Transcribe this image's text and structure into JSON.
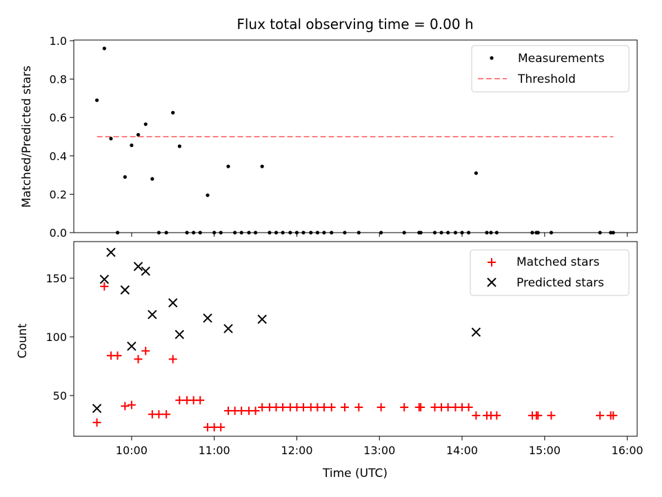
{
  "chart_data": [
    {
      "type": "scatter",
      "title": "Flux total observing time = 0.00 h",
      "xlabel": "",
      "ylabel": "Matched/Predicted stars",
      "ylim": [
        0.0,
        1.0
      ],
      "yticks": [
        0.0,
        0.2,
        0.4,
        0.6,
        0.8,
        1.0
      ],
      "ytick_labels": [
        "0.0",
        "0.2",
        "0.4",
        "0.6",
        "0.8",
        "1.0"
      ],
      "legend_position": "top-right",
      "series": [
        {
          "name": "Measurements",
          "marker": "dot",
          "color": "#000000",
          "x": [
            9.58,
            9.67,
            9.75,
            9.83,
            9.92,
            10.0,
            10.08,
            10.17,
            10.25,
            10.33,
            10.42,
            10.5,
            10.58,
            10.67,
            10.75,
            10.83,
            10.92,
            11.0,
            11.08,
            11.17,
            11.25,
            11.33,
            11.42,
            11.5,
            11.58,
            11.67,
            11.75,
            11.83,
            11.92,
            12.0,
            12.08,
            12.17,
            12.25,
            12.33,
            12.42,
            12.58,
            12.75,
            13.02,
            13.3,
            13.48,
            13.5,
            13.67,
            13.75,
            13.83,
            13.92,
            14.0,
            14.08,
            14.17,
            14.3,
            14.35,
            14.42,
            14.85,
            14.9,
            14.92,
            15.08,
            15.67,
            15.8,
            15.83
          ],
          "y": [
            0.69,
            0.96,
            0.49,
            0.0,
            0.29,
            0.455,
            0.51,
            0.565,
            0.28,
            0.0,
            0.0,
            0.625,
            0.45,
            0.0,
            0.0,
            0.0,
            0.195,
            0.0,
            0.0,
            0.345,
            0.0,
            0.0,
            0.0,
            0.0,
            0.345,
            0.0,
            0.0,
            0.0,
            0.0,
            0.0,
            0.0,
            0.0,
            0.0,
            0.0,
            0.0,
            0.0,
            0.0,
            0.0,
            0.0,
            0.0,
            0.0,
            0.0,
            0.0,
            0.0,
            0.0,
            0.0,
            0.0,
            0.31,
            0.0,
            0.0,
            0.0,
            0.0,
            0.0,
            0.0,
            0.0,
            0.0,
            0.0,
            0.0
          ]
        },
        {
          "name": "Threshold",
          "type": "line",
          "style": "dashed",
          "color": "#ff7f7f",
          "x": [
            9.58,
            15.83
          ],
          "y": [
            0.5,
            0.5
          ]
        }
      ]
    },
    {
      "type": "scatter",
      "title": "",
      "xlabel": "Time (UTC)",
      "ylabel": "Count",
      "ylim": [
        15,
        180
      ],
      "xlim": [
        9.3,
        16.12
      ],
      "yticks": [
        50,
        100,
        150
      ],
      "ytick_labels": [
        "50",
        "100",
        "150"
      ],
      "xticks": [
        10,
        11,
        12,
        13,
        14,
        15,
        16
      ],
      "xtick_labels": [
        "10:00",
        "11:00",
        "12:00",
        "13:00",
        "14:00",
        "15:00",
        "16:00"
      ],
      "legend_position": "top-right",
      "series": [
        {
          "name": "Matched stars",
          "marker": "plus",
          "color": "#ff0000",
          "x": [
            9.58,
            9.67,
            9.75,
            9.83,
            9.92,
            10.0,
            10.08,
            10.17,
            10.25,
            10.33,
            10.42,
            10.5,
            10.58,
            10.67,
            10.75,
            10.83,
            10.92,
            11.0,
            11.08,
            11.17,
            11.25,
            11.33,
            11.42,
            11.5,
            11.58,
            11.67,
            11.75,
            11.83,
            11.92,
            12.0,
            12.08,
            12.17,
            12.25,
            12.33,
            12.42,
            12.58,
            12.75,
            13.02,
            13.3,
            13.48,
            13.5,
            13.67,
            13.75,
            13.83,
            13.92,
            14.0,
            14.08,
            14.17,
            14.3,
            14.35,
            14.42,
            14.85,
            14.9,
            14.92,
            15.08,
            15.67,
            15.8,
            15.83
          ],
          "y": [
            27,
            143,
            84,
            84,
            41,
            42,
            81,
            88,
            34,
            34,
            34,
            81,
            46,
            46,
            46,
            46,
            23,
            23,
            23,
            37,
            37,
            37,
            37,
            37,
            40,
            40,
            40,
            40,
            40,
            40,
            40,
            40,
            40,
            40,
            40,
            40,
            40,
            40,
            40,
            40,
            40,
            40,
            40,
            40,
            40,
            40,
            40,
            33,
            33,
            33,
            33,
            33,
            33,
            33,
            33,
            33,
            33,
            33
          ]
        },
        {
          "name": "Predicted stars",
          "marker": "x",
          "color": "#000000",
          "x": [
            9.58,
            9.67,
            9.75,
            9.92,
            10.0,
            10.08,
            10.17,
            10.25,
            10.5,
            10.58,
            10.92,
            11.17,
            11.58,
            14.17
          ],
          "y": [
            39,
            149,
            172,
            140,
            92,
            160,
            156,
            119,
            129,
            102,
            116,
            107,
            115,
            104
          ]
        }
      ]
    }
  ]
}
